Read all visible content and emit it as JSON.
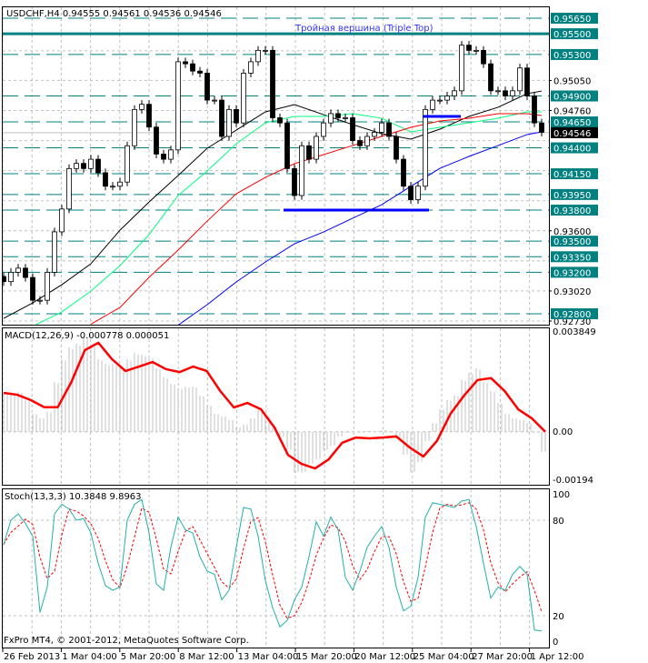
{
  "header": {
    "symbol_info": "USDCHF,H4  0.94555 0.94561 0.94536 0.94546"
  },
  "annotation": {
    "text": "Тройная вершина (Triple Top)",
    "color": "#3333ff"
  },
  "copyright": "FxPro MT4, © 2001-2012, MetaQuotes Software Corp.",
  "colors": {
    "level": "#008080",
    "bull": "#ffffff",
    "bear": "#000000",
    "ma_black": "#000000",
    "ma_lime": "#00ff7f",
    "ma_red": "#ff0000",
    "ma_blue": "#0000ff",
    "support": "#0000ff",
    "macd_hist": "#c0c0c0",
    "macd_signal": "#ff0000",
    "stoch_main": "#20b2aa",
    "stoch_signal": "#ff0000"
  },
  "chart_data": [
    {
      "type": "candlestick",
      "title": "USDCHF,H4",
      "ylim": [
        0.92695,
        0.95764
      ],
      "x_tick_labels": [
        "26 Feb 2013",
        "1 Mar 04:00",
        "5 Mar 20:00",
        "8 Mar 12:00",
        "13 Mar 04:00",
        "15 Mar 20:00",
        "20 Mar 12:00",
        "25 Mar 04:00",
        "27 Mar 20:00",
        "1 Apr 12:00"
      ],
      "y_tick_labels": [
        "0.95050",
        "0.94760",
        "0.93600",
        "0.93020",
        "0.92730"
      ],
      "grid_prices": [
        0.95335,
        0.9505,
        0.9476,
        0.9447,
        0.9418,
        0.9389,
        0.936,
        0.9331,
        0.9302,
        0.9273
      ],
      "current_price": "0.94546",
      "closes": [
        0.9311,
        0.932,
        0.9324,
        0.9315,
        0.9293,
        0.9293,
        0.932,
        0.9359,
        0.9381,
        0.942,
        0.9425,
        0.942,
        0.9429,
        0.9416,
        0.9403,
        0.9403,
        0.9407,
        0.9442,
        0.9477,
        0.9482,
        0.946,
        0.9434,
        0.9429,
        0.9438,
        0.9523,
        0.9521,
        0.9514,
        0.9512,
        0.9486,
        0.9486,
        0.9451,
        0.9477,
        0.9464,
        0.9512,
        0.9523,
        0.9534,
        0.9534,
        0.9469,
        0.9464,
        0.942,
        0.9394,
        0.9442,
        0.9429,
        0.9451,
        0.9464,
        0.9473,
        0.9469,
        0.9469,
        0.9447,
        0.9442,
        0.9451,
        0.9455,
        0.9464,
        0.9451,
        0.9429,
        0.9403,
        0.939,
        0.9403,
        0.9477,
        0.9486,
        0.9486,
        0.949,
        0.9495,
        0.9539,
        0.9534,
        0.9534,
        0.9521,
        0.9495,
        0.9495,
        0.949,
        0.9495,
        0.9517,
        0.949,
        0.9464,
        0.9455
      ],
      "moving_averages": [
        {
          "color": "#000000",
          "values": [
            0.92756,
            0.92905,
            0.9308,
            0.93282,
            0.93606,
            0.93878,
            0.94133,
            0.94396,
            0.94571,
            0.94747,
            0.94817,
            0.9472,
            0.94624,
            0.94536,
            0.94484,
            0.9458,
            0.94703,
            0.94791,
            0.94922,
            0.94948
          ]
        },
        {
          "color": "#00ff7f",
          "values": [
            null,
            0.9268,
            0.92817,
            0.93019,
            0.93264,
            0.93563,
            0.9394,
            0.94177,
            0.9444,
            0.94641,
            0.94703,
            0.94703,
            0.94729,
            0.94685,
            0.94554,
            0.94598,
            0.94641,
            0.94685,
            0.94747,
            0.94747
          ]
        },
        {
          "color": "#ff0000",
          "values": [
            null,
            null,
            null,
            0.927,
            0.92861,
            0.93151,
            0.93414,
            0.93694,
            0.93957,
            0.94115,
            0.94247,
            0.94335,
            0.94422,
            0.9451,
            0.94598,
            0.94659,
            0.94685,
            0.94729,
            0.94729,
            0.94712
          ]
        },
        {
          "color": "#0000ff",
          "values": [
            null,
            null,
            null,
            null,
            null,
            null,
            0.9269,
            0.92888,
            0.93107,
            0.93299,
            0.93475,
            0.93589,
            0.93721,
            0.93852,
            0.94028,
            0.94203,
            0.94317,
            0.94422,
            0.94528,
            0.94554
          ]
        }
      ],
      "levels": [
        {
          "price": 0.9565,
          "label": "0.95650",
          "style": "dashed"
        },
        {
          "price": 0.955,
          "label": "0.95500",
          "style": "solid-thick"
        },
        {
          "price": 0.953,
          "label": "0.95300",
          "style": "dashed"
        },
        {
          "price": 0.949,
          "label": "0.94900",
          "style": "dashed"
        },
        {
          "price": 0.9465,
          "label": "0.94650",
          "style": "dashed"
        },
        {
          "price": 0.944,
          "label": "0.94400",
          "style": "dashed"
        },
        {
          "price": 0.9415,
          "label": "0.94150",
          "style": "dashed"
        },
        {
          "price": 0.9395,
          "label": "0.93950",
          "style": "dashed"
        },
        {
          "price": 0.938,
          "label": "0.93800",
          "style": "dashed"
        },
        {
          "price": 0.935,
          "label": "0.93500",
          "style": "dashed"
        },
        {
          "price": 0.9335,
          "label": "0.93350",
          "style": "dashed"
        },
        {
          "price": 0.932,
          "label": "0.93200",
          "style": "dashed"
        },
        {
          "price": 0.928,
          "label": "0.92800",
          "style": "dashed"
        }
      ],
      "support_lines": [
        {
          "price": 0.938
        },
        {
          "price": 0.94703
        }
      ]
    },
    {
      "type": "bar",
      "title": "MACD(12,26,9) -0.000778 0.000051",
      "ylim": [
        -0.00194,
        0.003849
      ],
      "y_tick_labels": [
        "0.003849",
        "0.00",
        "-0.00194"
      ],
      "histogram": [
        0.00151,
        0.00151,
        0.00151,
        0.0012,
        0.00068,
        0.00051,
        0.00075,
        0.00188,
        0.00275,
        0.0032,
        0.00333,
        0.00361,
        0.00326,
        0.00275,
        0.00257,
        0.00257,
        0.0024,
        0.00275,
        0.00299,
        0.00292,
        0.00282,
        0.0024,
        0.00206,
        0.00182,
        0.00164,
        0.00171,
        0.00171,
        0.00137,
        0.00102,
        0.00068,
        0.00058,
        0.00044,
        0.00016,
        0.00027,
        0.00051,
        0.00085,
        0.00058,
        0.00016,
        -0.00018,
        -0.0007,
        -0.00155,
        -0.00155,
        -0.00122,
        -0.00104,
        -0.0007,
        -0.00053,
        -0.00018,
        -4e-05,
        -1e-05,
        -4e-05,
        2e-05,
        2e-05,
        6e-05,
        -4e-05,
        -0.00025,
        -0.00087,
        -0.00155,
        -0.00115,
        -0.00035,
        0.00033,
        0.00085,
        0.0012,
        0.00137,
        0.00196,
        0.00223,
        0.0024,
        0.00188,
        0.00154,
        0.00109,
        0.00068,
        0.00051,
        0.00044,
        0.00033,
        -4e-05,
        -0.00077
      ],
      "signal": [
        0.00147,
        0.0014,
        0.0012,
        0.00093,
        0.00093,
        0.00188,
        0.00309,
        0.00337,
        0.00275,
        0.0023,
        0.00247,
        0.00264,
        0.00237,
        0.00226,
        0.00247,
        0.0023,
        0.00154,
        0.00092,
        0.00109,
        0.00085,
        0.00016,
        -0.00088,
        -0.00122,
        -0.00139,
        -0.00105,
        -0.00042,
        -0.00022,
        -0.00025,
        -0.00022,
        -0.00018,
        -0.0006,
        -0.00094,
        -0.00035,
        0.00068,
        0.00137,
        0.00196,
        0.00203,
        0.00154,
        0.00085,
        0.00051,
        0.0
      ]
    },
    {
      "type": "line",
      "title": "Stoch(13,3,3) 10.3848 9.8963",
      "ylim": [
        0,
        100
      ],
      "y_tick_labels": [
        "100",
        "80",
        "20",
        "0"
      ],
      "main": [
        64.8,
        80,
        84,
        78,
        70,
        22,
        38,
        84,
        90,
        87,
        80,
        81,
        72,
        53,
        39,
        36,
        38,
        80,
        90,
        93,
        72,
        40,
        36,
        63,
        82,
        74,
        72,
        57,
        48,
        46,
        30,
        36,
        63,
        88,
        87,
        70,
        42,
        25,
        13,
        17,
        30,
        38,
        57,
        79,
        70,
        82,
        74,
        44,
        36,
        48,
        63,
        70,
        76,
        63,
        38,
        23,
        26,
        44,
        82,
        91,
        90,
        89,
        88,
        92,
        93,
        76,
        53,
        31,
        38,
        36,
        46,
        51,
        46,
        11,
        10.4
      ]
    }
  ]
}
